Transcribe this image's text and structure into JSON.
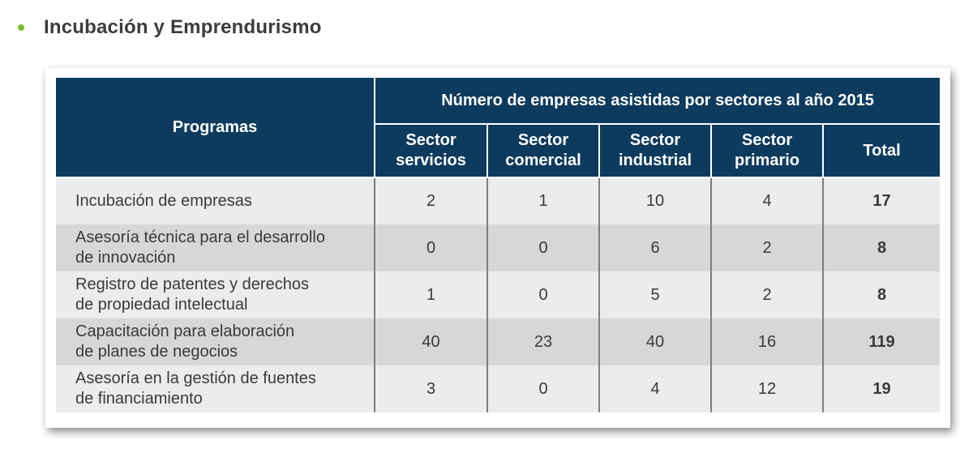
{
  "heading": "Incubación y Emprendurismo",
  "table": {
    "col_programas": "Programas",
    "group_header": "Número de empresas asistidas por sectores al año 2015",
    "sub_headers": [
      [
        "Sector",
        "servicios"
      ],
      [
        "Sector",
        "comercial"
      ],
      [
        "Sector",
        "industrial"
      ],
      [
        "Sector",
        "primario"
      ],
      [
        "Total"
      ]
    ],
    "rows": [
      {
        "program": [
          "Incubación de empresas"
        ],
        "values": [
          "2",
          "1",
          "10",
          "4"
        ],
        "total": "17"
      },
      {
        "program": [
          "Asesoría técnica para el desarrollo",
          "de innovación"
        ],
        "values": [
          "0",
          "0",
          "6",
          "2"
        ],
        "total": "8"
      },
      {
        "program": [
          "Registro de patentes y derechos",
          "de propiedad intelectual"
        ],
        "values": [
          "1",
          "0",
          "5",
          "2"
        ],
        "total": "8"
      },
      {
        "program": [
          "Capacitación para elaboración",
          "de planes de negocios"
        ],
        "values": [
          "40",
          "23",
          "40",
          "16"
        ],
        "total": "119"
      },
      {
        "program": [
          "Asesoría en la gestión de fuentes",
          "de financiamiento"
        ],
        "values": [
          "3",
          "0",
          "4",
          "12"
        ],
        "total": "19"
      }
    ]
  },
  "colors": {
    "bullet": "#7dbb2f",
    "header_bg": "#0d3b5e",
    "row_light": "#ececec",
    "row_dark": "#d7d7d7"
  }
}
